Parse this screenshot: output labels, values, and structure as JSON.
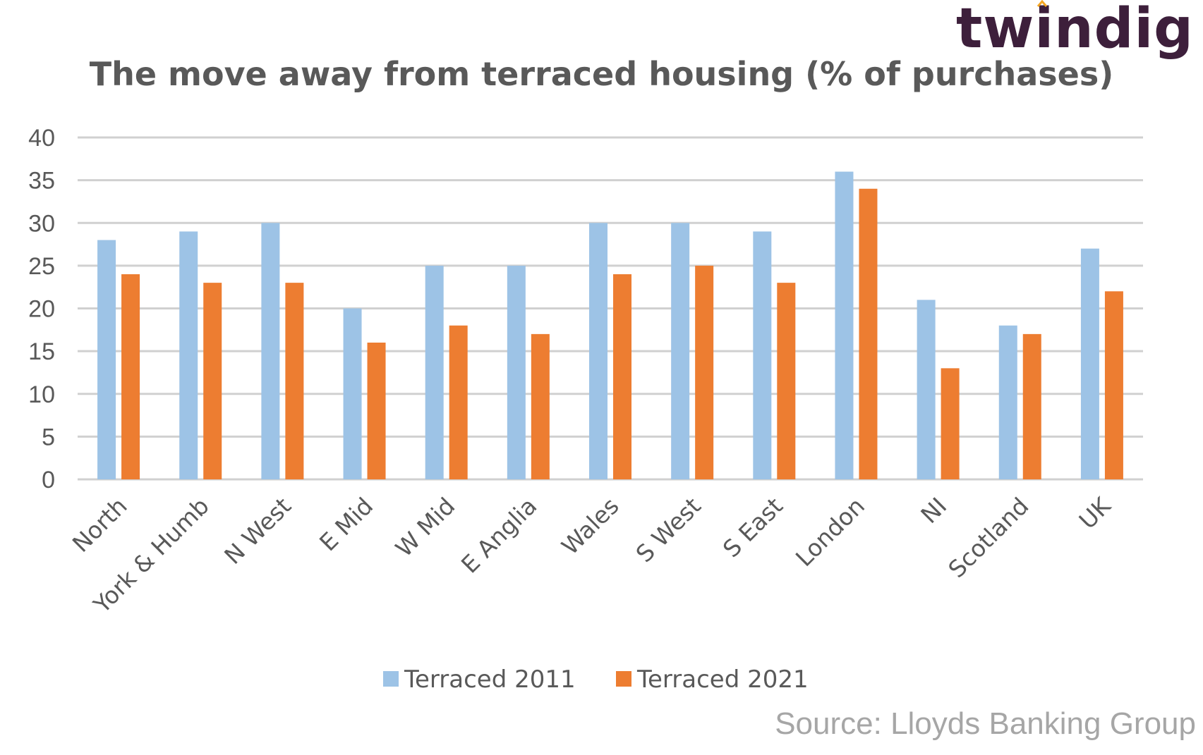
{
  "logo": {
    "text": "twindig",
    "accent_color": "#f5a623"
  },
  "source": "Source: Lloyds Banking Group",
  "chart_data": {
    "type": "bar",
    "title": "The move away from terraced housing (% of purchases)",
    "xlabel": "",
    "ylabel": "",
    "ylim": [
      0,
      40
    ],
    "yticks": [
      0,
      5,
      10,
      15,
      20,
      25,
      30,
      35,
      40
    ],
    "grid": true,
    "legend_position": "bottom",
    "categories": [
      "North",
      "York & Humb",
      "N West",
      "E Mid",
      "W Mid",
      "E Anglia",
      "Wales",
      "S West",
      "S East",
      "London",
      "NI",
      "Scotland",
      "UK"
    ],
    "series": [
      {
        "name": "Terraced 2011",
        "color": "#9dc3e6",
        "values": [
          28,
          29,
          30,
          20,
          25,
          25,
          30,
          30,
          29,
          36,
          21,
          18,
          27
        ]
      },
      {
        "name": "Terraced 2021",
        "color": "#ed7d31",
        "values": [
          24,
          23,
          23,
          16,
          18,
          17,
          24,
          25,
          23,
          34,
          13,
          17,
          22
        ]
      }
    ]
  }
}
